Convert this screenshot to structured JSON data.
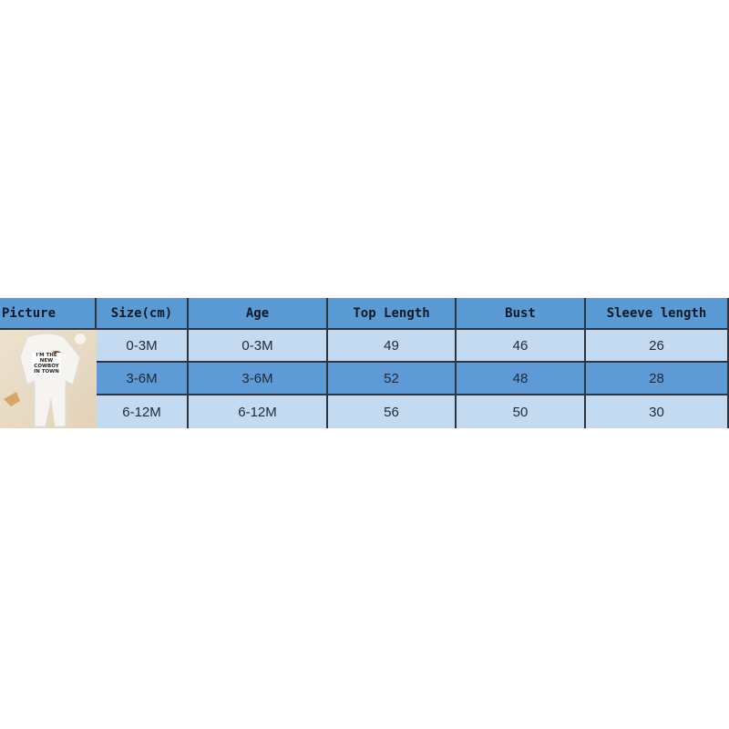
{
  "table": {
    "headers": [
      "Picture",
      "Size(cm)",
      "Age",
      "Top Length",
      "Bust",
      "Sleeve length"
    ],
    "rows": [
      [
        "0-3M",
        "0-3M",
        "49",
        "46",
        "26"
      ],
      [
        "3-6M",
        "3-6M",
        "52",
        "48",
        "28"
      ],
      [
        "6-12M",
        "6-12M",
        "56",
        "50",
        "30"
      ]
    ]
  },
  "picture": {
    "print_text": "I'M THE NEW COWBOY IN TOWN"
  },
  "colors": {
    "header": "#5b9bd5",
    "row_light": "#c4daf1",
    "row_dark": "#5e9ad6",
    "border": "#2c3540"
  }
}
